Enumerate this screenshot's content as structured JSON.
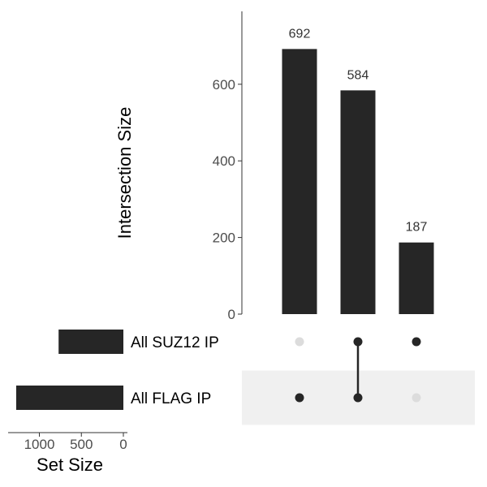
{
  "chart_data": {
    "type": "bar",
    "subtype": "upset",
    "colors": {
      "bar": "#262626",
      "dot_active": "#262626",
      "dot_inactive": "#dcdcdc",
      "row_shade": "#f0f0f0",
      "axis": "#333333",
      "tick_text": "#4d4d4d"
    },
    "intersections": {
      "ylabel": "Intersection Size",
      "ylim": [
        0,
        800
      ],
      "yticks": [
        0,
        200,
        400,
        600
      ],
      "values": [
        692,
        584,
        187
      ],
      "data_labels": [
        "692",
        "584",
        "187"
      ],
      "membership": [
        [
          "All FLAG IP"
        ],
        [
          "All SUZ12 IP",
          "All FLAG IP"
        ],
        [
          "All SUZ12 IP"
        ]
      ]
    },
    "sets": {
      "xlabel": "Set Size",
      "names": [
        "All SUZ12 IP",
        "All FLAG IP"
      ],
      "values": [
        771,
        1276
      ],
      "xlim": [
        0,
        1400
      ],
      "xticks": [
        1000,
        500,
        0
      ],
      "shaded_rows": [
        "All FLAG IP"
      ]
    }
  }
}
